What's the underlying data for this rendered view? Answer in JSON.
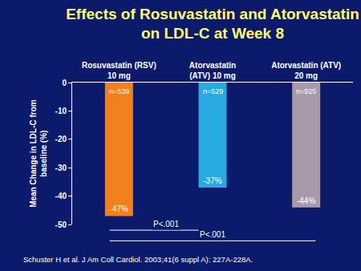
{
  "chart_data": {
    "type": "bar",
    "title": "Effects of Rosuvastatin and Atorvastatin\non LDL-C at Week 8",
    "categories": [
      "Rosuvastatin (RSV)\n10 mg",
      "Atorvastatin\n(ATV) 10 mg",
      "Atorvastatin (ATV)\n20 mg"
    ],
    "values": [
      -47,
      -37,
      -44
    ],
    "value_labels": [
      "-47%",
      "-37%",
      "-44%"
    ],
    "data_labels": true,
    "colors": [
      "#f2801c",
      "#27a9e1",
      "#a99aab"
    ],
    "n_labels": [
      "n=539",
      "n=529",
      "n=925"
    ],
    "ylabel": "Mean Change in LDL-C from\nbaseline (%)",
    "ylim": [
      -50,
      0
    ],
    "yticks": [
      0,
      -10,
      -20,
      -30,
      -40,
      -50
    ],
    "grid": false,
    "comparisons": [
      {
        "between": [
          "Rosuvastatin (RSV)\n10 mg",
          "Atorvastatin\n(ATV) 10 mg"
        ],
        "label": "P<.001"
      },
      {
        "between": [
          "Rosuvastatin (RSV)\n10 mg",
          "Atorvastatin (ATV)\n20 mg"
        ],
        "label": "P<.001"
      }
    ],
    "source": "Schuster H et al. J Am Coll Cardiol. 2003;41(6 suppl A): 227A-228A."
  }
}
